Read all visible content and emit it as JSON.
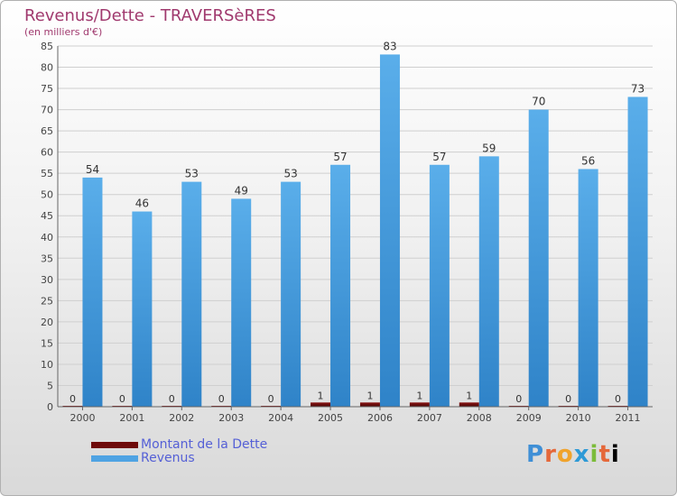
{
  "title": "Revenus/Dette - TRAVERSèRES",
  "subtitle": "(en milliers d'€)",
  "logo": "Proxiti",
  "colors": {
    "dette": "#6e0a0a",
    "revenus": "#4fa3e3",
    "title": "#a0396e",
    "legend_text": "#5560d6"
  },
  "legend": [
    {
      "label": "Montant de la Dette",
      "color": "#6e0a0a"
    },
    {
      "label": "Revenus",
      "color": "#4fa3e3"
    }
  ],
  "chart_data": {
    "type": "bar",
    "title": "Revenus/Dette - TRAVERSèRES",
    "subtitle": "(en milliers d'€)",
    "categories": [
      "2000",
      "2001",
      "2002",
      "2003",
      "2004",
      "2005",
      "2006",
      "2007",
      "2008",
      "2009",
      "2010",
      "2011"
    ],
    "series": [
      {
        "name": "Montant de la Dette",
        "values": [
          0,
          0,
          0,
          0,
          0,
          1,
          1,
          1,
          1,
          0,
          0,
          0
        ]
      },
      {
        "name": "Revenus",
        "values": [
          54,
          46,
          53,
          49,
          53,
          57,
          83,
          57,
          59,
          70,
          56,
          73
        ]
      }
    ],
    "ylim": [
      0,
      85
    ],
    "yticks": [
      0,
      5,
      10,
      15,
      20,
      25,
      30,
      35,
      40,
      45,
      50,
      55,
      60,
      65,
      70,
      75,
      80,
      85
    ],
    "grid": true,
    "legend_position": "bottom-left"
  }
}
